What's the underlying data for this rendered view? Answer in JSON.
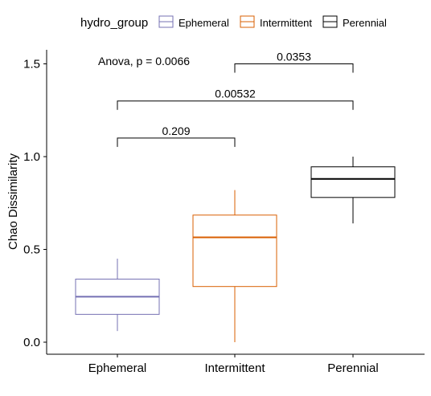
{
  "chart_data": {
    "type": "box",
    "ylabel": "Chao Dissimilarity",
    "ylim": [
      -0.06,
      1.58
    ],
    "yticks": [
      "0.0",
      "0.5",
      "1.0",
      "1.5"
    ],
    "categories": [
      "Ephemeral",
      "Intermittent",
      "Perennial"
    ],
    "legend": {
      "title": "hydro_group",
      "position": "top",
      "entries": [
        "Ephemeral",
        "Intermittent",
        "Perennial"
      ]
    },
    "colors": {
      "Ephemeral": "#7570b3",
      "Intermittent": "#d95f02",
      "Perennial": "#000000"
    },
    "boxes": [
      {
        "group": "Ephemeral",
        "min": 0.06,
        "q1": 0.15,
        "median": 0.245,
        "q3": 0.34,
        "max": 0.45
      },
      {
        "group": "Intermittent",
        "min": 0.0,
        "q1": 0.3,
        "median": 0.565,
        "q3": 0.685,
        "max": 0.82
      },
      {
        "group": "Perennial",
        "min": 0.64,
        "q1": 0.78,
        "median": 0.88,
        "q3": 0.945,
        "max": 1.0
      }
    ],
    "anova_label": "Anova, p = 0.0066",
    "comparisons": [
      {
        "from": "Ephemeral",
        "to": "Intermittent",
        "label": "0.209",
        "y": 1.1
      },
      {
        "from": "Ephemeral",
        "to": "Perennial",
        "label": "0.00532",
        "y": 1.3
      },
      {
        "from": "Intermittent",
        "to": "Perennial",
        "label": "0.0353",
        "y": 1.5
      }
    ]
  }
}
